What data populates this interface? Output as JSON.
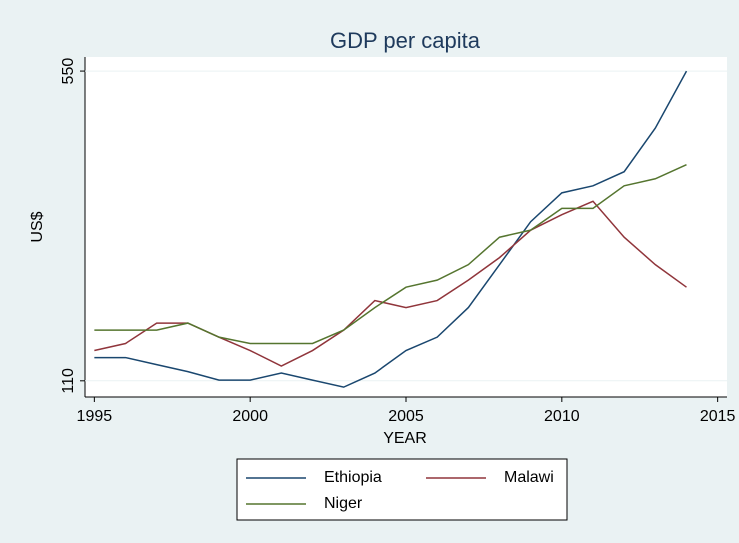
{
  "chart_data": {
    "type": "line",
    "title": "GDP per capita",
    "x_label": "YEAR",
    "y_label": "US$",
    "x": [
      1995,
      1996,
      1997,
      1998,
      1999,
      2000,
      2001,
      2002,
      2003,
      2004,
      2005,
      2006,
      2007,
      2008,
      2009,
      2010,
      2011,
      2012,
      2013,
      2014
    ],
    "series": [
      {
        "name": "Ethiopia",
        "color": "#1a476f",
        "values": [
          143,
          143,
          133,
          123,
          111,
          111,
          121,
          111,
          101,
          121,
          153,
          172,
          214,
          275,
          336,
          377,
          387,
          407,
          469,
          550
        ]
      },
      {
        "name": "Malawi",
        "color": "#90353b",
        "values": [
          153,
          163,
          192,
          192,
          172,
          153,
          131,
          153,
          182,
          224,
          214,
          224,
          253,
          285,
          324,
          346,
          365,
          314,
          275,
          243
        ]
      },
      {
        "name": "Niger",
        "color": "#55752f",
        "values": [
          182,
          182,
          182,
          192,
          172,
          163,
          163,
          163,
          182,
          214,
          243,
          253,
          275,
          314,
          324,
          355,
          355,
          387,
          397,
          417
        ]
      }
    ],
    "xlim": [
      1994.7,
      2015.3
    ],
    "ylim": [
      87,
      570
    ],
    "xticks": [
      1995,
      2000,
      2005,
      2010,
      2015
    ],
    "yticks": [
      110,
      550
    ],
    "grid": true,
    "legend": "bottom"
  }
}
